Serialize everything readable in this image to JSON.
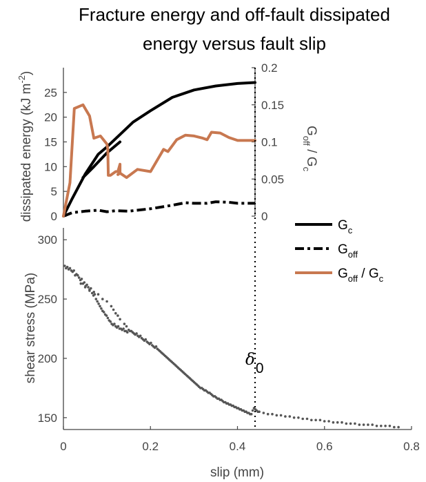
{
  "chart_data": [
    {
      "type": "line",
      "title_lines": [
        "Fracture energy and off-fault dissipated",
        "energy versus fault slip"
      ],
      "xlim": [
        0,
        0.44
      ],
      "ylabel": "dissipated energy (kJ m",
      "ylabel_superscript": "-2",
      "ylabel_suffix": ")",
      "ylim": [
        0,
        30
      ],
      "yticks": [
        "0",
        "5",
        "10",
        "15",
        "20",
        "25"
      ],
      "y2label_main": "G",
      "y2label_sub": "off",
      "y2label_mid": " / G",
      "y2label_sub2": "c",
      "y2lim": [
        0,
        0.2
      ],
      "y2ticks": [
        "0",
        "0.05",
        "0.1",
        "0.15",
        "0.2"
      ],
      "grid": false,
      "series": [
        {
          "name": "G_c",
          "axis": "left",
          "color": "#000000",
          "style": "solid",
          "x": [
            0.0,
            0.02,
            0.05,
            0.08,
            0.1,
            0.13,
            0.16,
            0.2,
            0.25,
            0.3,
            0.35,
            0.4,
            0.44
          ],
          "y": [
            0.0,
            3.5,
            8.5,
            12.5,
            14.0,
            16.5,
            19.0,
            21.3,
            24.0,
            25.5,
            26.3,
            26.8,
            27.0
          ]
        },
        {
          "name": "G_c (secondary trace)",
          "axis": "left",
          "color": "#000000",
          "style": "solid",
          "x": [
            0.045,
            0.07,
            0.1,
            0.13
          ],
          "y": [
            7.8,
            10.0,
            12.8,
            15.0
          ]
        },
        {
          "name": "G_off",
          "axis": "left",
          "color": "#000000",
          "style": "dashdot",
          "x": [
            0.0,
            0.02,
            0.05,
            0.08,
            0.1,
            0.12,
            0.15,
            0.2,
            0.25,
            0.28,
            0.3,
            0.33,
            0.35,
            0.38,
            0.4,
            0.44
          ],
          "y": [
            0.0,
            0.7,
            1.0,
            1.2,
            0.9,
            1.1,
            1.0,
            1.5,
            2.2,
            2.7,
            2.6,
            2.6,
            2.9,
            2.8,
            2.6,
            2.6
          ]
        },
        {
          "name": "G_off / G_c",
          "axis": "right",
          "color": "#C87850",
          "style": "solid",
          "x": [
            0.0,
            0.015,
            0.025,
            0.045,
            0.06,
            0.07,
            0.085,
            0.1,
            0.102,
            0.103,
            0.108,
            0.12,
            0.125,
            0.13,
            0.13,
            0.125,
            0.13,
            0.145,
            0.17,
            0.2,
            0.22,
            0.23,
            0.24,
            0.25,
            0.26,
            0.28,
            0.3,
            0.32,
            0.33,
            0.34,
            0.36,
            0.38,
            0.4,
            0.44
          ],
          "y": [
            0.0,
            0.045,
            0.145,
            0.15,
            0.135,
            0.105,
            0.108,
            0.097,
            0.09,
            0.055,
            0.055,
            0.06,
            0.06,
            0.07,
            0.058,
            0.056,
            0.058,
            0.052,
            0.063,
            0.06,
            0.08,
            0.09,
            0.087,
            0.095,
            0.103,
            0.109,
            0.108,
            0.105,
            0.103,
            0.113,
            0.112,
            0.106,
            0.102,
            0.102
          ]
        }
      ],
      "reference_line": {
        "x": 0.44,
        "style": "dotted"
      }
    },
    {
      "type": "scatter",
      "xlabel": "slip (mm)",
      "xlim": [
        0,
        0.8
      ],
      "xticks": [
        "0",
        "0.2",
        "0.4",
        "0.6",
        "0.8"
      ],
      "ylabel": "shear stress (MPa)",
      "ylim": [
        140,
        310
      ],
      "yticks": [
        "150",
        "200",
        "250",
        "300"
      ],
      "grid": false,
      "series": [
        {
          "name": "shear stress",
          "color": "#555555",
          "points": [
            [
              0.003,
              278
            ],
            [
              0.006,
              276
            ],
            [
              0.009,
              277
            ],
            [
              0.012,
              275
            ],
            [
              0.015,
              276
            ],
            [
              0.018,
              274
            ],
            [
              0.021,
              273
            ],
            [
              0.024,
              274
            ],
            [
              0.027,
              270
            ],
            [
              0.03,
              271
            ],
            [
              0.033,
              270
            ],
            [
              0.036,
              268
            ],
            [
              0.039,
              266
            ],
            [
              0.042,
              267
            ],
            [
              0.045,
              263
            ],
            [
              0.048,
              264
            ],
            [
              0.051,
              261
            ],
            [
              0.054,
              262
            ],
            [
              0.057,
              260
            ],
            [
              0.06,
              258
            ],
            [
              0.063,
              259
            ],
            [
              0.066,
              255
            ],
            [
              0.069,
              253
            ],
            [
              0.072,
              254
            ],
            [
              0.075,
              250
            ],
            [
              0.078,
              248
            ],
            [
              0.081,
              246
            ],
            [
              0.084,
              244
            ],
            [
              0.087,
              242
            ],
            [
              0.09,
              240
            ],
            [
              0.093,
              239
            ],
            [
              0.096,
              237
            ],
            [
              0.099,
              236
            ],
            [
              0.102,
              234
            ],
            [
              0.105,
              232
            ],
            [
              0.108,
              231
            ],
            [
              0.111,
              229
            ],
            [
              0.114,
              228
            ],
            [
              0.117,
              229
            ],
            [
              0.12,
              227
            ],
            [
              0.123,
              226
            ],
            [
              0.126,
              227
            ],
            [
              0.129,
              225
            ],
            [
              0.132,
              225
            ],
            [
              0.135,
              224
            ],
            [
              0.138,
              225
            ],
            [
              0.141,
              223
            ],
            [
              0.144,
              223
            ],
            [
              0.147,
              222
            ],
            [
              0.15,
              224
            ],
            [
              0.153,
              223
            ],
            [
              0.156,
              223
            ],
            [
              0.159,
              222
            ],
            [
              0.162,
              221
            ],
            [
              0.165,
              220
            ],
            [
              0.168,
              221
            ],
            [
              0.171,
              219
            ],
            [
              0.174,
              218
            ],
            [
              0.177,
              219
            ],
            [
              0.18,
              217
            ],
            [
              0.183,
              216
            ],
            [
              0.186,
              215
            ],
            [
              0.189,
              216
            ],
            [
              0.192,
              214
            ],
            [
              0.195,
              213
            ],
            [
              0.198,
              212
            ],
            [
              0.201,
              213
            ],
            [
              0.204,
              211
            ],
            [
              0.207,
              210
            ],
            [
              0.21,
              209
            ],
            [
              0.213,
              210
            ],
            [
              0.216,
              208
            ],
            [
              0.219,
              207
            ],
            [
              0.222,
              206
            ],
            [
              0.225,
              205
            ],
            [
              0.228,
              204
            ],
            [
              0.231,
              203
            ],
            [
              0.234,
              202
            ],
            [
              0.237,
              201
            ],
            [
              0.24,
              200
            ],
            [
              0.243,
              199
            ],
            [
              0.246,
              198
            ],
            [
              0.249,
              197
            ],
            [
              0.252,
              196
            ],
            [
              0.255,
              195
            ],
            [
              0.258,
              194
            ],
            [
              0.261,
              193
            ],
            [
              0.264,
              192
            ],
            [
              0.267,
              191
            ],
            [
              0.27,
              190
            ],
            [
              0.273,
              189
            ],
            [
              0.276,
              188
            ],
            [
              0.279,
              187
            ],
            [
              0.282,
              186
            ],
            [
              0.285,
              185
            ],
            [
              0.288,
              184
            ],
            [
              0.291,
              183
            ],
            [
              0.294,
              182
            ],
            [
              0.297,
              181
            ],
            [
              0.3,
              180
            ],
            [
              0.303,
              179
            ],
            [
              0.306,
              178
            ],
            [
              0.309,
              177
            ],
            [
              0.312,
              176
            ],
            [
              0.315,
              175
            ],
            [
              0.318,
              175
            ],
            [
              0.321,
              174
            ],
            [
              0.324,
              173
            ],
            [
              0.327,
              173
            ],
            [
              0.33,
              172
            ],
            [
              0.333,
              171
            ],
            [
              0.336,
              171
            ],
            [
              0.339,
              170
            ],
            [
              0.342,
              169
            ],
            [
              0.345,
              168
            ],
            [
              0.348,
              168
            ],
            [
              0.351,
              167
            ],
            [
              0.354,
              166
            ],
            [
              0.357,
              166
            ],
            [
              0.36,
              165
            ],
            [
              0.363,
              165
            ],
            [
              0.366,
              164
            ],
            [
              0.369,
              163
            ],
            [
              0.372,
              163
            ],
            [
              0.375,
              162
            ],
            [
              0.378,
              162
            ],
            [
              0.381,
              161
            ],
            [
              0.384,
              161
            ],
            [
              0.387,
              160
            ],
            [
              0.39,
              160
            ],
            [
              0.393,
              159
            ],
            [
              0.396,
              159
            ],
            [
              0.399,
              158
            ],
            [
              0.402,
              158
            ],
            [
              0.405,
              157
            ],
            [
              0.408,
              157
            ],
            [
              0.411,
              156
            ],
            [
              0.414,
              156
            ],
            [
              0.417,
              155
            ],
            [
              0.42,
              155
            ],
            [
              0.423,
              154
            ],
            [
              0.426,
              154
            ],
            [
              0.429,
              153
            ],
            [
              0.432,
              153
            ],
            [
              0.435,
              156
            ],
            [
              0.438,
              158
            ],
            [
              0.441,
              157
            ],
            [
              0.444,
              156
            ],
            [
              0.447,
              155
            ],
            [
              0.45,
              155
            ],
            [
              0.46,
              154
            ],
            [
              0.47,
              153
            ],
            [
              0.48,
              153
            ],
            [
              0.49,
              152
            ],
            [
              0.5,
              152
            ],
            [
              0.51,
              151
            ],
            [
              0.52,
              151
            ],
            [
              0.53,
              150
            ],
            [
              0.54,
              150
            ],
            [
              0.55,
              149
            ],
            [
              0.56,
              149
            ],
            [
              0.57,
              148
            ],
            [
              0.58,
              148
            ],
            [
              0.59,
              148
            ],
            [
              0.6,
              147
            ],
            [
              0.61,
              147
            ],
            [
              0.62,
              146
            ],
            [
              0.63,
              146
            ],
            [
              0.64,
              146
            ],
            [
              0.65,
              145
            ],
            [
              0.66,
              145
            ],
            [
              0.67,
              145
            ],
            [
              0.68,
              144
            ],
            [
              0.69,
              144
            ],
            [
              0.7,
              144
            ],
            [
              0.71,
              144
            ],
            [
              0.72,
              143
            ],
            [
              0.73,
              143
            ],
            [
              0.74,
              143
            ],
            [
              0.75,
              143
            ],
            [
              0.76,
              142
            ],
            [
              0.77,
              142
            ],
            [
              0.04,
              263
            ],
            [
              0.05,
              260
            ],
            [
              0.06,
              257
            ],
            [
              0.07,
              256
            ],
            [
              0.08,
              254
            ],
            [
              0.09,
              250
            ],
            [
              0.1,
              248
            ],
            [
              0.11,
              244
            ],
            [
              0.115,
              241
            ],
            [
              0.12,
              238
            ],
            [
              0.125,
              236
            ],
            [
              0.13,
              233
            ],
            [
              0.14,
              229
            ],
            [
              0.145,
              227
            ]
          ]
        }
      ],
      "reference_line": {
        "x": 0.44,
        "style": "dotted",
        "label": "δ",
        "label_sub": "0"
      }
    }
  ],
  "legend": {
    "placement": "right",
    "entries": [
      {
        "label": "G",
        "sub": "c",
        "style": "solid",
        "color": "#000000"
      },
      {
        "label": "G",
        "sub": "off",
        "style": "dashdot",
        "color": "#000000"
      },
      {
        "label": "G",
        "sub": "off",
        "suffix": " / G",
        "sub2": "c",
        "style": "solid",
        "color": "#C87850"
      }
    ]
  }
}
